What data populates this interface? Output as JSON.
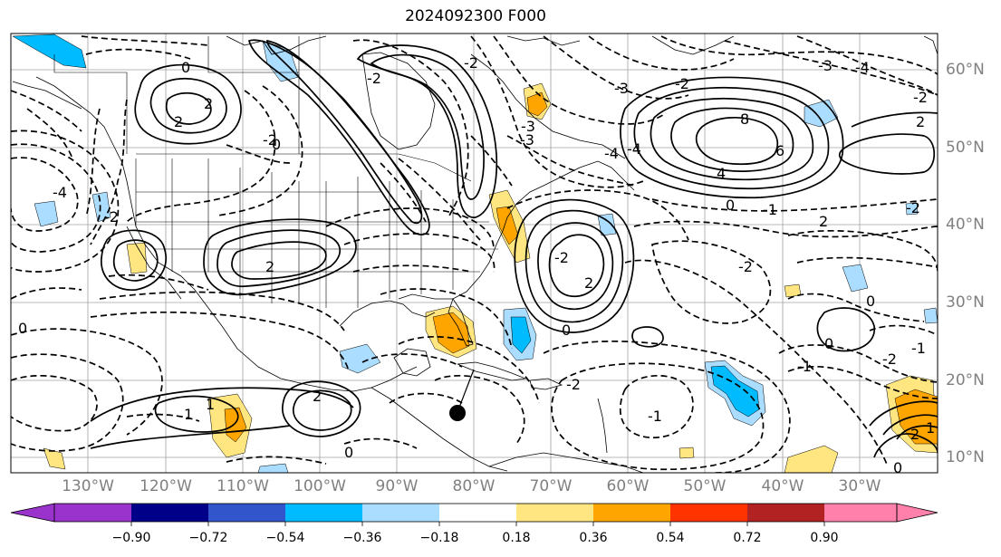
{
  "title": "2024092300 F000",
  "map": {
    "lon_labels": [
      "130°W",
      "120°W",
      "110°W",
      "100°W",
      "90°W",
      "80°W",
      "70°W",
      "60°W",
      "50°W",
      "40°W",
      "30°W"
    ],
    "lat_labels": [
      "60°N",
      "50°N",
      "40°N",
      "30°N",
      "20°N",
      "10°N"
    ],
    "contour_labels": [
      "-4",
      "0",
      "2",
      "-2",
      "0",
      "2",
      "-2",
      "2",
      "-2",
      "-2",
      "-3",
      "-4",
      "-3",
      "-3",
      "-2",
      "8",
      "6",
      "4",
      "-4",
      "0",
      "-1",
      "2",
      "-2",
      "0",
      "-1",
      "0",
      "-2",
      "2",
      "2",
      "-2",
      "1",
      "1",
      "0",
      "2",
      "-1",
      "-1",
      "-2",
      "0",
      "0",
      "2",
      "1",
      "-2",
      "-3",
      "-4",
      "-2",
      "0"
    ],
    "storm_marker": "black-circle"
  },
  "colorbar": {
    "colors": [
      "#9933cc",
      "#000088",
      "#3355cc",
      "#00bbff",
      "#aaddff",
      "#ffffff",
      "#ffe680",
      "#ffa500",
      "#ff3300",
      "#b22222",
      "#ff80aa"
    ],
    "tick_labels": [
      "−0.90",
      "−0.72",
      "−0.54",
      "−0.36",
      "−0.18",
      "0.18",
      "0.36",
      "0.54",
      "0.72",
      "0.90"
    ]
  }
}
